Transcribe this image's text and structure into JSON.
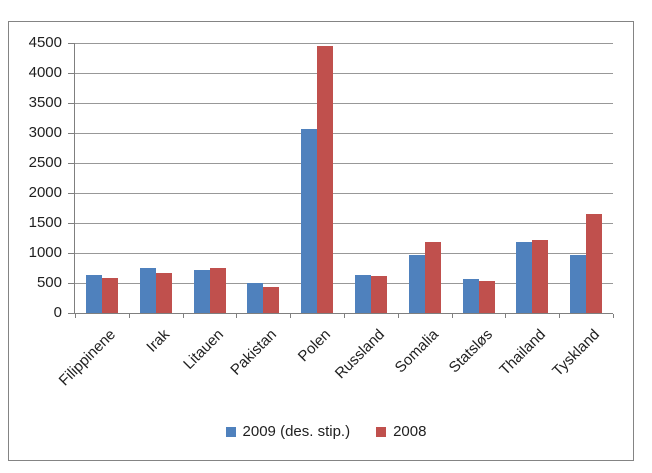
{
  "chart_data": {
    "type": "bar",
    "title": "",
    "categories": [
      "Filippinene",
      "Irak",
      "Litauen",
      "Pakistan",
      "Polen",
      "Russland",
      "Somalia",
      "Statsløs",
      "Thailand",
      "Tyskland"
    ],
    "series": [
      {
        "name": "2009 (des. stip.)",
        "color": "#4F81BD",
        "values": [
          635,
          755,
          710,
          500,
          3060,
          640,
          965,
          565,
          1180,
          960
        ]
      },
      {
        "name": "2008",
        "color": "#C0504D",
        "values": [
          580,
          665,
          750,
          435,
          4450,
          620,
          1185,
          530,
          1220,
          1650
        ]
      }
    ],
    "ylim": [
      0,
      4500
    ],
    "ytick_step": 500,
    "ytick_labels": [
      "0",
      "500",
      "1000",
      "1500",
      "2000",
      "2500",
      "3000",
      "3500",
      "4000",
      "4500"
    ],
    "grid": true,
    "legend_position": "bottom",
    "axis_color": "#7f7f7f",
    "gridline_color": "#989898",
    "border_color": "#848484",
    "text_color": "#1f1f1f",
    "background_color": "#ffffff"
  }
}
